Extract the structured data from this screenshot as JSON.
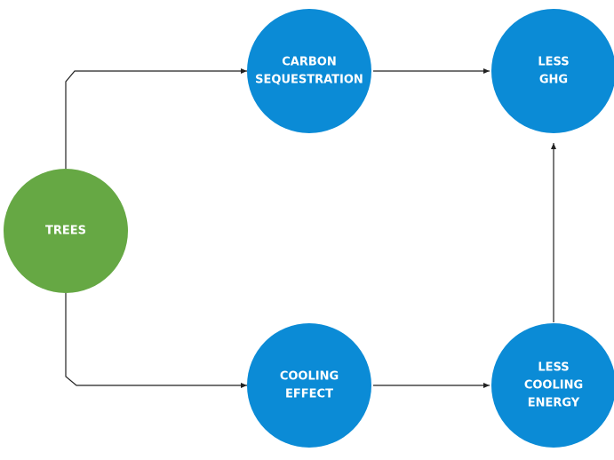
{
  "nodes": [
    {
      "label": [
        "TREES"
      ]
    },
    {
      "label": [
        "CARBON",
        "SEQUESTRATION"
      ]
    },
    {
      "label": [
        "LESS",
        "GHG"
      ]
    },
    {
      "label": [
        "COOLING",
        "EFFECT"
      ]
    },
    {
      "label": [
        "LESS",
        "COOLING",
        "ENERGY"
      ]
    }
  ]
}
